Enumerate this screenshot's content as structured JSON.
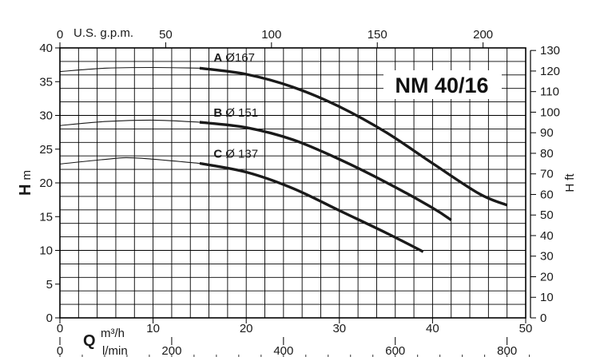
{
  "chart_data": {
    "type": "line",
    "title": "NM 40/16",
    "x": {
      "label": "Q",
      "unit": "m³/h",
      "range": [
        0,
        50
      ],
      "ticks": [
        0,
        10,
        20,
        30,
        40,
        50
      ],
      "grid_step": 2
    },
    "x2_top": {
      "unit": "U.S. g.p.m.",
      "ticks": [
        0,
        50,
        100,
        150,
        200
      ]
    },
    "x3_bottom": {
      "unit": "l/min",
      "ticks": [
        0,
        200,
        400,
        600,
        800
      ]
    },
    "y": {
      "label": "H",
      "unit": "m",
      "range": [
        0,
        40
      ],
      "ticks": [
        0,
        5,
        10,
        15,
        20,
        25,
        30,
        35,
        40
      ],
      "grid_step": 2
    },
    "y2_right": {
      "label": "H",
      "unit": "ft",
      "ticks": [
        0,
        10,
        20,
        30,
        40,
        50,
        60,
        70,
        80,
        90,
        100,
        110,
        120,
        130
      ]
    },
    "grid": true,
    "series": [
      {
        "letter": "A",
        "diameter": "Ø167",
        "label_at": [
          16.5,
          38
        ],
        "thin": [
          [
            0,
            36.5
          ],
          [
            5,
            37.0
          ],
          [
            10,
            37.1
          ],
          [
            15,
            37.0
          ]
        ],
        "thick": [
          [
            15,
            37.0
          ],
          [
            20,
            36.1
          ],
          [
            25,
            34.2
          ],
          [
            30,
            31.3
          ],
          [
            35,
            27.5
          ],
          [
            40,
            22.9
          ],
          [
            45,
            18.4
          ],
          [
            48,
            16.7
          ]
        ]
      },
      {
        "letter": "B",
        "diameter": "Ø 151",
        "label_at": [
          16.5,
          29.8
        ],
        "thin": [
          [
            0,
            28.5
          ],
          [
            5,
            29.1
          ],
          [
            10,
            29.3
          ],
          [
            15,
            29.0
          ]
        ],
        "thick": [
          [
            15,
            29.0
          ],
          [
            20,
            28.2
          ],
          [
            25,
            26.4
          ],
          [
            30,
            23.5
          ],
          [
            35,
            20.1
          ],
          [
            40,
            16.3
          ],
          [
            42,
            14.5
          ]
        ]
      },
      {
        "letter": "C",
        "diameter": "Ø 137",
        "label_at": [
          16.5,
          23.7
        ],
        "thin": [
          [
            0,
            22.8
          ],
          [
            5,
            23.5
          ],
          [
            8,
            23.7
          ],
          [
            15,
            22.9
          ]
        ],
        "thick": [
          [
            15,
            22.9
          ],
          [
            20,
            21.6
          ],
          [
            25,
            19.2
          ],
          [
            30,
            15.9
          ],
          [
            35,
            12.6
          ],
          [
            39,
            9.8
          ]
        ]
      }
    ]
  }
}
